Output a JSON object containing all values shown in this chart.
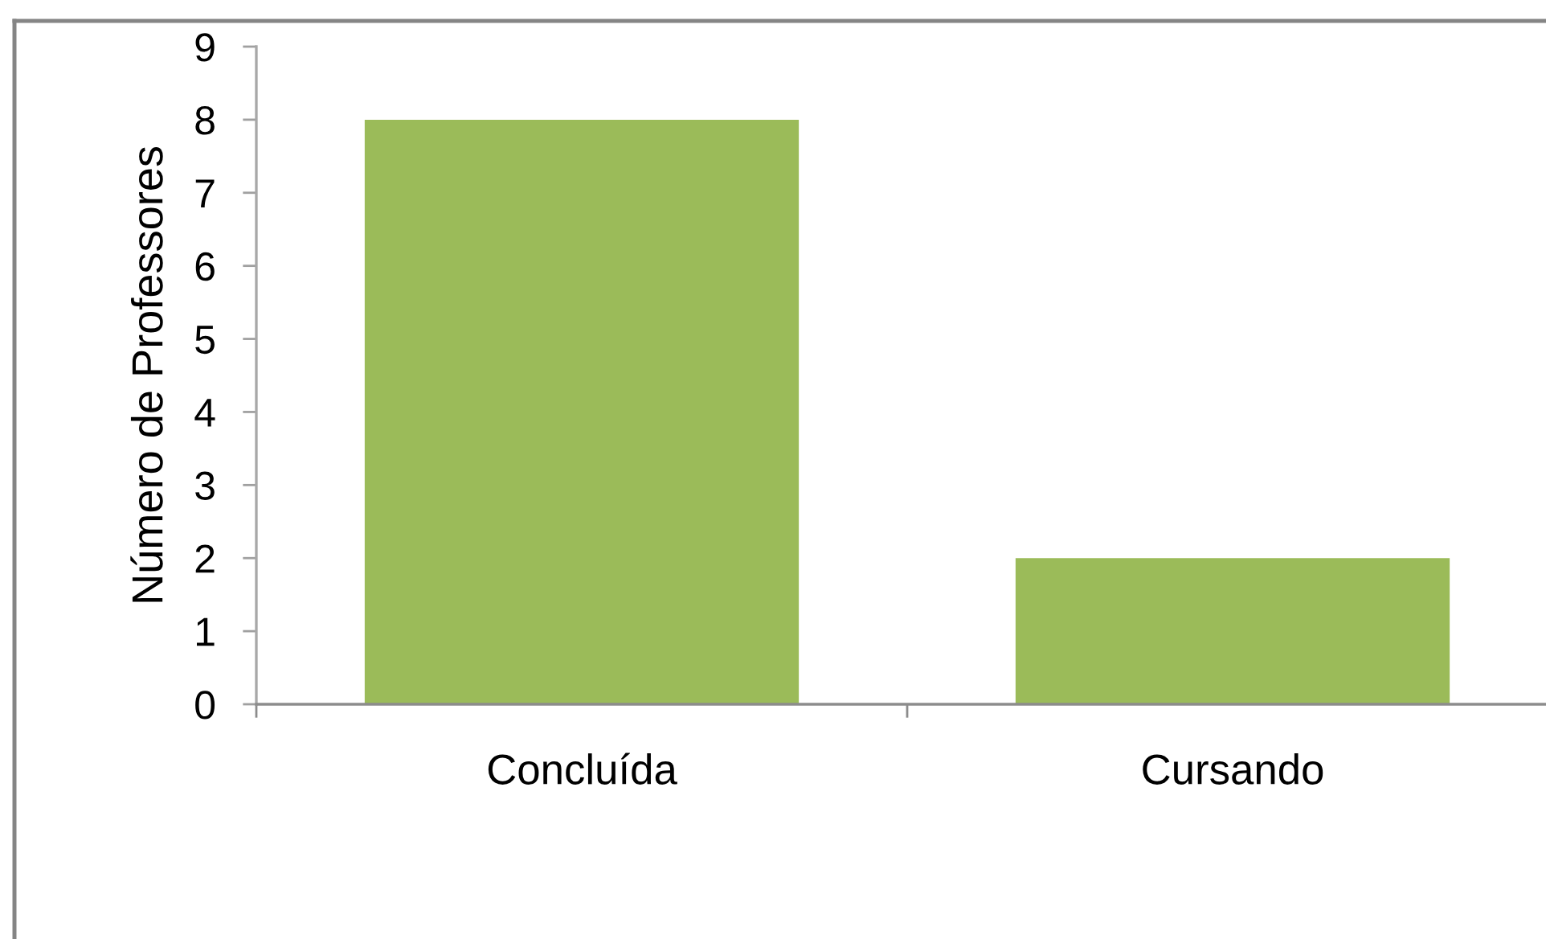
{
  "chart_data": {
    "type": "bar",
    "ylabel": "Número de Professores",
    "categories": [
      "Concluída",
      "Cursando"
    ],
    "values": [
      8,
      2
    ],
    "color": "#9bbb59",
    "ylim": [
      0,
      9
    ],
    "yticks": [
      0,
      1,
      2,
      3,
      4,
      5,
      6,
      7,
      8,
      9
    ],
    "grid": false
  }
}
